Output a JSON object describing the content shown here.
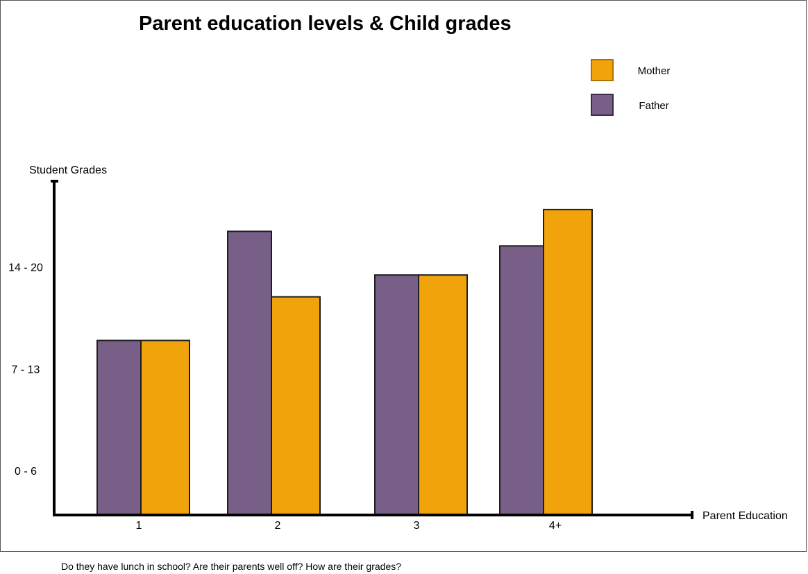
{
  "chart_data": {
    "type": "bar",
    "title": "Parent education levels & Child grades",
    "xlabel": "Parent Education",
    "ylabel": "Student Grades",
    "categories": [
      "1",
      "2",
      "3",
      "4+"
    ],
    "y_tick_labels": [
      "0 - 6",
      "7 - 13",
      "14 - 20"
    ],
    "y_tick_values": [
      3,
      10,
      17
    ],
    "ylim": [
      0,
      23
    ],
    "grid": false,
    "legend_position": "top-right",
    "series": [
      {
        "name": "Father",
        "color": "#775F88",
        "values": [
          12.0,
          19.5,
          16.5,
          18.5
        ]
      },
      {
        "name": "Mother",
        "color": "#F0A30A",
        "values": [
          12.0,
          15.0,
          16.5,
          21.0
        ]
      }
    ],
    "legend_order": [
      1,
      0
    ]
  },
  "caption": "Do they have lunch in school? Are their parents well off? How are their grades?"
}
